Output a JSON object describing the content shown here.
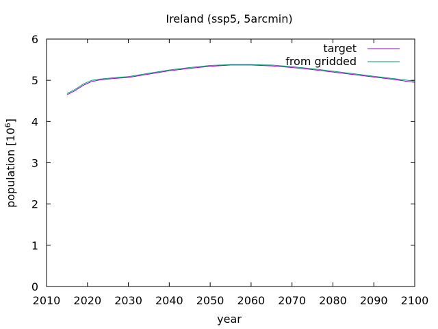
{
  "chart_data": {
    "type": "line",
    "title": "Ireland (ssp5, 5arcmin)",
    "xlabel": "year",
    "ylabel": "population [10",
    "ylabel_sup": "6",
    "ylabel_end": "]",
    "xlim": [
      2010,
      2100
    ],
    "ylim": [
      0,
      6
    ],
    "xticks": [
      2010,
      2020,
      2030,
      2040,
      2050,
      2060,
      2070,
      2080,
      2090,
      2100
    ],
    "yticks": [
      0,
      1,
      2,
      3,
      4,
      5,
      6
    ],
    "grid": false,
    "legend_position": "top-right",
    "series": [
      {
        "name": "target",
        "color": "#9400d3",
        "x": [
          2015,
          2017,
          2019,
          2021,
          2023,
          2025,
          2027,
          2030,
          2035,
          2040,
          2045,
          2050,
          2055,
          2060,
          2065,
          2070,
          2075,
          2080,
          2085,
          2090,
          2095,
          2100
        ],
        "y": [
          4.65,
          4.75,
          4.88,
          4.97,
          5.01,
          5.03,
          5.05,
          5.07,
          5.15,
          5.23,
          5.29,
          5.34,
          5.37,
          5.37,
          5.35,
          5.31,
          5.26,
          5.2,
          5.14,
          5.08,
          5.02,
          4.95
        ]
      },
      {
        "name": "from gridded",
        "color": "#009e73",
        "x": [
          2015,
          2017,
          2019,
          2021,
          2023,
          2025,
          2027,
          2030,
          2035,
          2040,
          2045,
          2050,
          2055,
          2060,
          2065,
          2070,
          2075,
          2080,
          2085,
          2090,
          2095,
          2100
        ],
        "y": [
          4.68,
          4.78,
          4.91,
          5.0,
          5.03,
          5.05,
          5.07,
          5.09,
          5.17,
          5.25,
          5.31,
          5.36,
          5.38,
          5.38,
          5.37,
          5.33,
          5.28,
          5.22,
          5.16,
          5.1,
          5.04,
          4.98
        ]
      }
    ]
  }
}
